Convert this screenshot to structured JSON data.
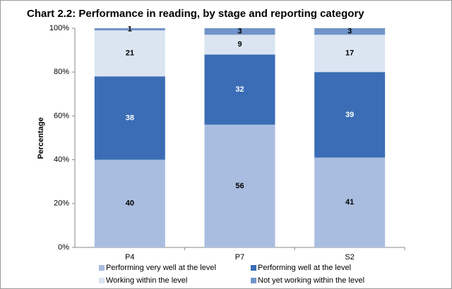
{
  "chart_data": {
    "type": "stacked_bar",
    "title": "Chart 2.2: Performance in reading, by stage and reporting category",
    "y_label": "Percentage",
    "categories": [
      "P4",
      "P7",
      "S2"
    ],
    "series": [
      {
        "name": "Performing very well at the level",
        "color": "#a9bde0",
        "values": [
          40,
          56,
          41
        ]
      },
      {
        "name": "Performing well at the level",
        "color": "#3a6db5",
        "values": [
          38,
          32,
          39
        ]
      },
      {
        "name": "Working within the level",
        "color": "#dbe5f2",
        "values": [
          21,
          9,
          17
        ]
      },
      {
        "name": "Not yet working within the level",
        "color": "#7094c9",
        "values": [
          1,
          3,
          3
        ]
      }
    ],
    "ylim": [
      0,
      100
    ],
    "yticks": [
      {
        "value": 0,
        "label": "0%"
      },
      {
        "value": 20,
        "label": "20%"
      },
      {
        "value": 40,
        "label": "40%"
      },
      {
        "value": 60,
        "label": "60%"
      },
      {
        "value": 80,
        "label": "80%"
      },
      {
        "value": 100,
        "label": "100%"
      }
    ]
  }
}
